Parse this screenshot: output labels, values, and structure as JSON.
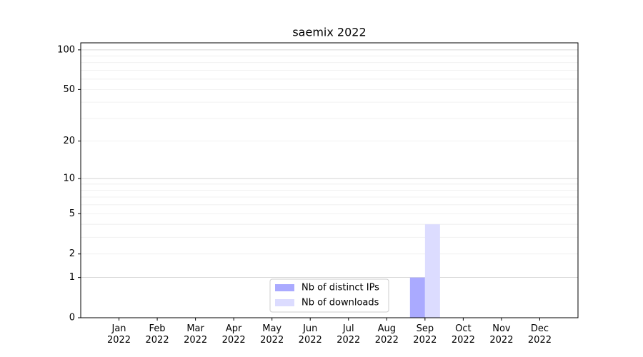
{
  "chart_data": {
    "type": "bar",
    "title": "saemix 2022",
    "categories": [
      "Jan 2022",
      "Feb 2022",
      "Mar 2022",
      "Apr 2022",
      "May 2022",
      "Jun 2022",
      "Jul 2022",
      "Aug 2022",
      "Sep 2022",
      "Oct 2022",
      "Nov 2022",
      "Dec 2022"
    ],
    "series": [
      {
        "name": "Nb of distinct IPs",
        "color": "#aaaaff",
        "values": [
          0,
          0,
          0,
          0,
          0,
          0,
          0,
          0,
          1,
          0,
          0,
          0
        ]
      },
      {
        "name": "Nb of downloads",
        "color": "#dcdcff",
        "values": [
          0,
          0,
          0,
          0,
          0,
          0,
          0,
          0,
          4,
          0,
          0,
          0
        ]
      }
    ],
    "yscale": "log1p",
    "ylim": [
      0,
      113
    ],
    "yticks": [
      0,
      1,
      2,
      5,
      10,
      20,
      50,
      100
    ],
    "minor_yticks": [
      3,
      4,
      6,
      7,
      8,
      9,
      30,
      40,
      60,
      70,
      80,
      90
    ],
    "grid": true,
    "legend": "lower center"
  }
}
